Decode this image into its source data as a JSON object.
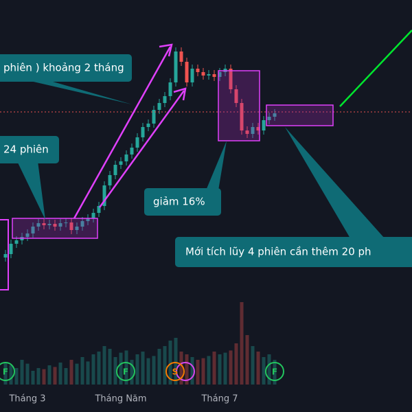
{
  "chart_data": {
    "type": "candlestick",
    "categories": [
      null,
      null,
      null,
      null,
      "Tháng 3",
      null,
      null,
      null,
      null,
      null,
      null,
      null,
      null,
      null,
      null,
      null,
      null,
      null,
      null,
      null,
      null,
      "Tháng Năm",
      null,
      null,
      null,
      null,
      null,
      null,
      null,
      null,
      null,
      null,
      null,
      null,
      null,
      null,
      null,
      null,
      null,
      "Tháng 7",
      null,
      null,
      null,
      null,
      null,
      null,
      null,
      null,
      null,
      null
    ],
    "open": [
      25,
      30,
      45,
      50,
      55,
      60,
      70,
      75,
      72,
      74,
      70,
      75,
      76,
      65,
      70,
      78,
      82,
      90,
      100,
      130,
      145,
      160,
      165,
      175,
      185,
      200,
      215,
      220,
      240,
      250,
      260,
      280,
      325,
      310,
      280,
      300,
      295,
      290,
      292,
      288,
      295,
      300,
      270,
      250,
      210,
      205,
      215,
      210,
      225,
      230
    ],
    "high": [
      36,
      51,
      56,
      61,
      66,
      76,
      81,
      81,
      80,
      80,
      81,
      82,
      82,
      76,
      84,
      88,
      96,
      106,
      136,
      151,
      166,
      171,
      181,
      191,
      206,
      221,
      226,
      246,
      256,
      266,
      286,
      331,
      331,
      316,
      306,
      306,
      301,
      298,
      298,
      301,
      306,
      306,
      276,
      256,
      216,
      221,
      221,
      231,
      236,
      241
    ],
    "low": [
      19,
      24,
      39,
      44,
      49,
      54,
      64,
      66,
      66,
      64,
      64,
      69,
      59,
      59,
      64,
      72,
      76,
      84,
      94,
      124,
      139,
      154,
      159,
      169,
      179,
      194,
      209,
      214,
      234,
      244,
      254,
      274,
      304,
      274,
      274,
      289,
      284,
      284,
      282,
      282,
      289,
      264,
      244,
      204,
      199,
      199,
      204,
      204,
      219,
      224
    ],
    "close": [
      30,
      45,
      50,
      55,
      60,
      70,
      75,
      72,
      74,
      70,
      75,
      76,
      65,
      70,
      78,
      82,
      90,
      100,
      130,
      145,
      160,
      165,
      175,
      185,
      200,
      215,
      220,
      240,
      250,
      260,
      280,
      325,
      310,
      280,
      300,
      295,
      290,
      292,
      288,
      295,
      300,
      270,
      250,
      210,
      205,
      215,
      210,
      225,
      230,
      235
    ],
    "volume": [
      40,
      35,
      30,
      45,
      38,
      25,
      30,
      28,
      35,
      32,
      40,
      30,
      45,
      38,
      50,
      42,
      55,
      60,
      70,
      65,
      50,
      58,
      62,
      45,
      55,
      60,
      48,
      52,
      65,
      70,
      80,
      85,
      60,
      55,
      50,
      45,
      48,
      52,
      60,
      55,
      58,
      62,
      75,
      150,
      90,
      70,
      60,
      50,
      55,
      45
    ],
    "ylim": [
      0,
      350
    ],
    "volume_ylim": [
      0,
      200
    ],
    "up_color": "#26a69a",
    "down_color": "#ef5350"
  },
  "annotations": [
    "phiên ) khoảng 2 tháng",
    "24 phiên",
    "giảm 16%",
    "Mới tích lũy 4 phiên cần thêm 20 ph"
  ],
  "event_markers": [
    "F",
    "F",
    "S",
    "F"
  ]
}
